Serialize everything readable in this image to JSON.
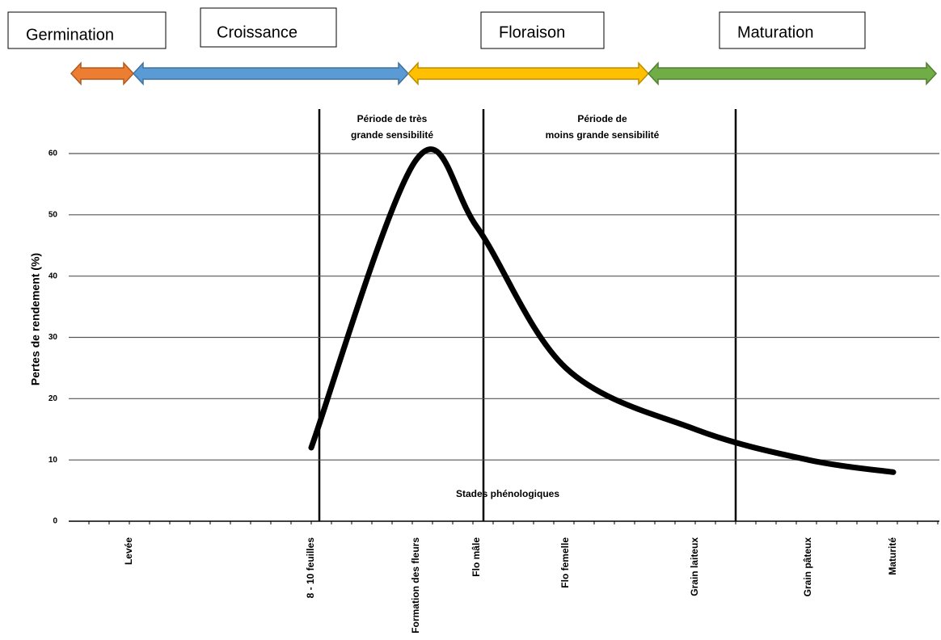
{
  "chart_data": {
    "type": "line",
    "phases": [
      "Germination",
      "Croissance",
      "Floraison",
      "Maturation"
    ],
    "annotations": [
      "Période de très",
      "grande sensibilité",
      "Période de",
      "moins grande sensibilité",
      "Stades phénologiques"
    ],
    "ylabel": "Pertes de rendement (%)",
    "categories": [
      "Levée",
      "8 - 10 feuilles",
      "Formation des fleurs",
      "Flo mâle",
      "Flo femelle",
      "Grain laiteux",
      "Grain pâteux",
      "Maturité"
    ],
    "series": [
      {
        "name": "Pertes de rendement",
        "color": "#000000",
        "values": [
          null,
          12,
          59,
          48,
          25,
          15,
          10,
          8
        ]
      }
    ],
    "ylim": [
      0,
      60
    ],
    "yticks": [
      0,
      10,
      20,
      30,
      40,
      50,
      60
    ],
    "grid": true
  }
}
